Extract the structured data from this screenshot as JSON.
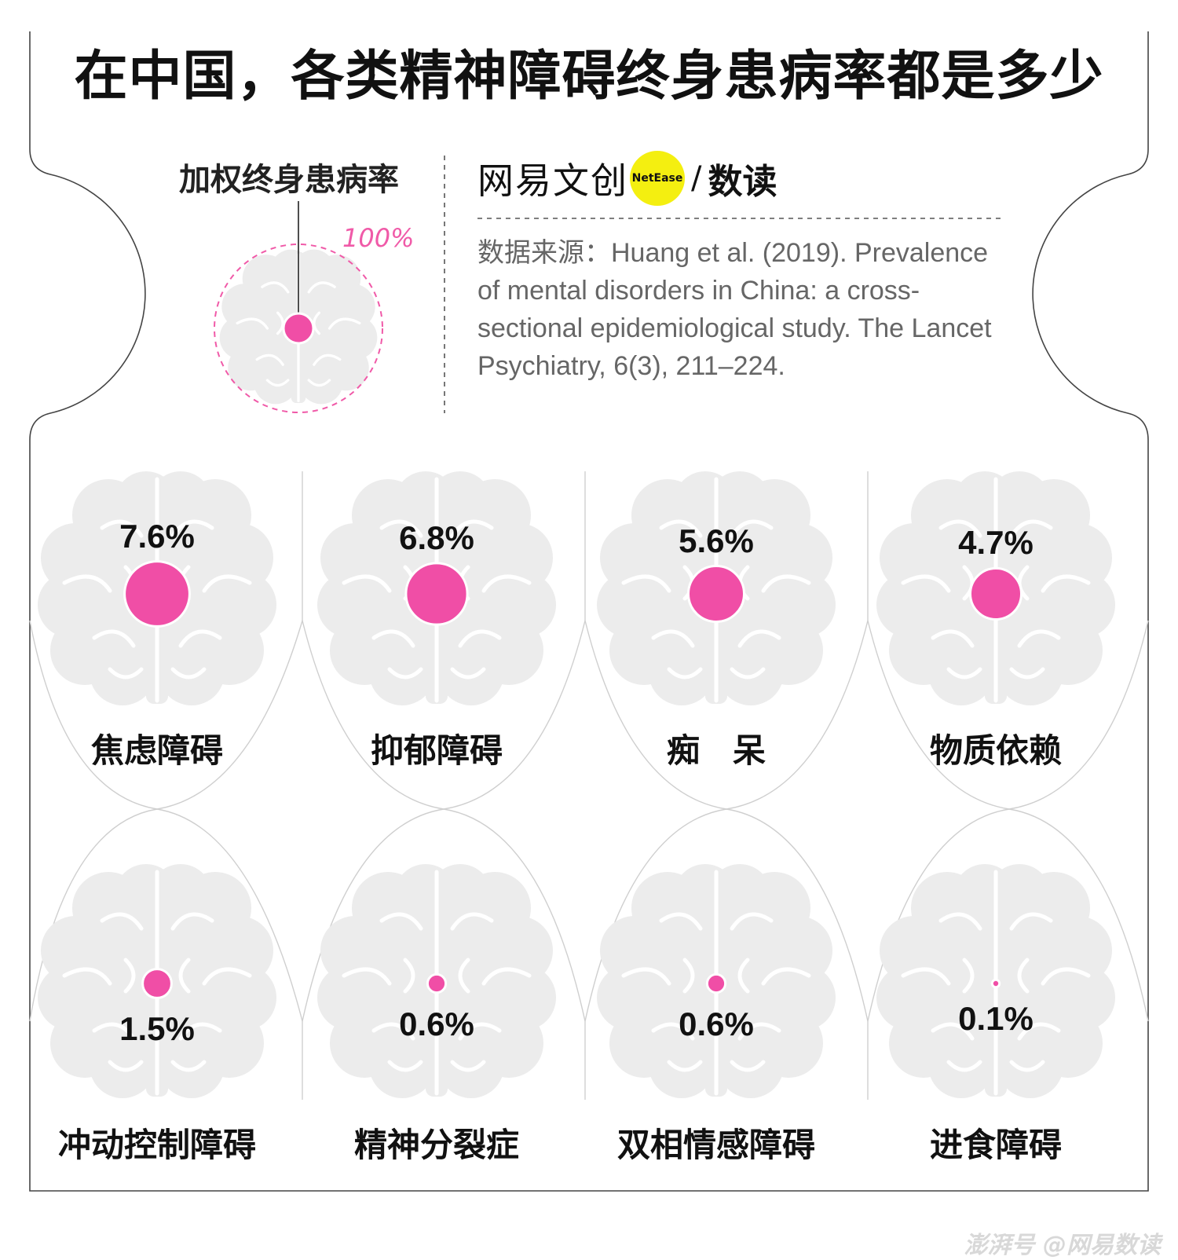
{
  "title": "在中国，各类精神障碍终身患病率都是多少",
  "legend": {
    "label": "加权终身患病率",
    "reference_label": "100%"
  },
  "brand": {
    "name_cn": "网易文创",
    "badge": "NetEase",
    "slash": "/",
    "sub": "数读"
  },
  "source": "数据来源：Huang et al. (2019). Prevalence of mental disorders in China: a cross-sectional epidemiological study. The Lancet Psychiatry, 6(3), 211–224.",
  "footer": "澎湃号 @网易数读",
  "colors": {
    "dot": "#f04ea6",
    "brain": "#ececec",
    "frame": "#444444",
    "badge": "#f4ef10"
  },
  "icons": {
    "brain": "brain-icon"
  },
  "chart_data": {
    "type": "bubble",
    "title": "在中国，各类精神障碍终身患病率都是多少",
    "reference": {
      "label": "100%",
      "value": 100
    },
    "categories": [
      "焦虑障碍",
      "抑郁障碍",
      "痴　呆",
      "物质依赖",
      "冲动控制障碍",
      "精神分裂症",
      "双相情感障碍",
      "进食障碍"
    ],
    "values": [
      7.6,
      6.8,
      5.6,
      4.7,
      1.5,
      0.6,
      0.6,
      0.1
    ],
    "value_labels": [
      "7.6%",
      "6.8%",
      "5.6%",
      "4.7%",
      "1.5%",
      "0.6%",
      "0.6%",
      "0.1%"
    ],
    "unit": "%"
  }
}
